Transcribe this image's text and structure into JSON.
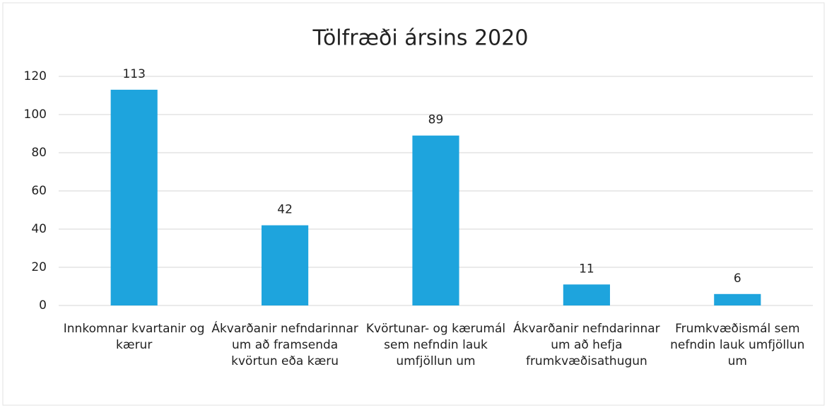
{
  "chart_data": {
    "type": "bar",
    "title": "Tölfræði ársins 2020",
    "categories": [
      "Innkomnar kvartanir og kærur",
      "Ákvarðanir nefndarinnar um að framsenda kvörtun eða kæru",
      "Kvörtunar- og kærumál sem nefndin lauk umfjöllun um",
      "Ákvarðanir nefndarinnar um að hefja frumkvæðisathugun",
      "Frumkvæðismál sem nefndin lauk umfjöllun um"
    ],
    "values": [
      113,
      42,
      89,
      11,
      6
    ],
    "color": "#1ea4dd",
    "ylim": [
      0,
      120
    ],
    "yticks": [
      0,
      20,
      40,
      60,
      80,
      100,
      120
    ],
    "grid": true
  }
}
